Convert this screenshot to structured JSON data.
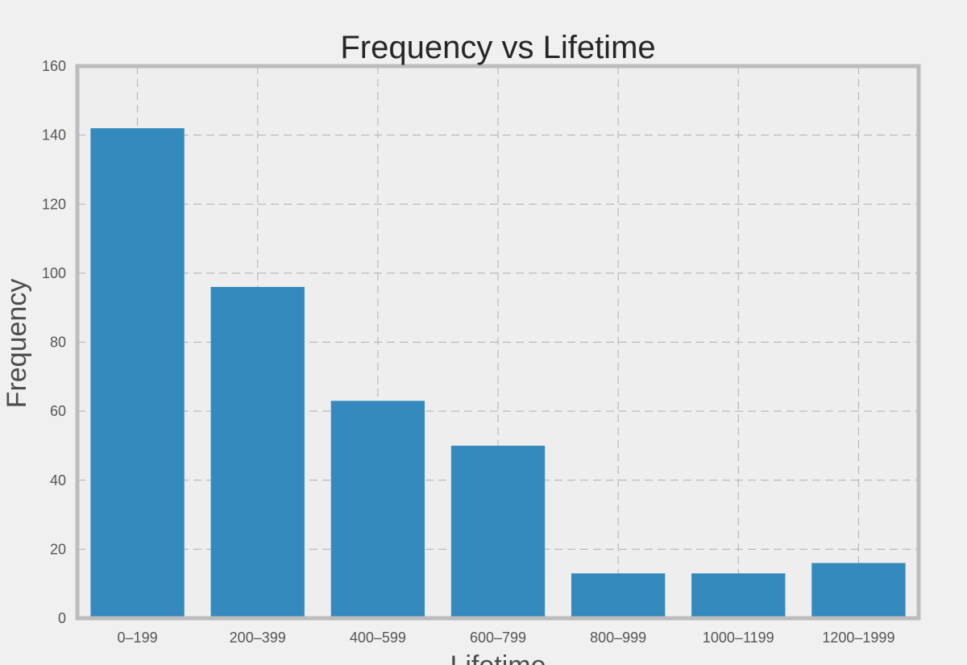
{
  "chart_data": {
    "type": "bar",
    "title": "Frequency vs Lifetime",
    "xlabel": "Lifetime",
    "ylabel": "Frequency",
    "categories": [
      "0–199",
      "200–399",
      "400–599",
      "600–799",
      "800–999",
      "1000–1199",
      "1200–1999"
    ],
    "values": [
      142,
      96,
      63,
      50,
      13,
      13,
      16
    ],
    "ylim": [
      0,
      160
    ],
    "yticks": [
      0,
      20,
      40,
      60,
      80,
      100,
      120,
      140,
      160
    ],
    "grid": true,
    "bar_color": "#348abd",
    "background_color": "#eeeeee",
    "frame_color": "#bcbcbc"
  }
}
